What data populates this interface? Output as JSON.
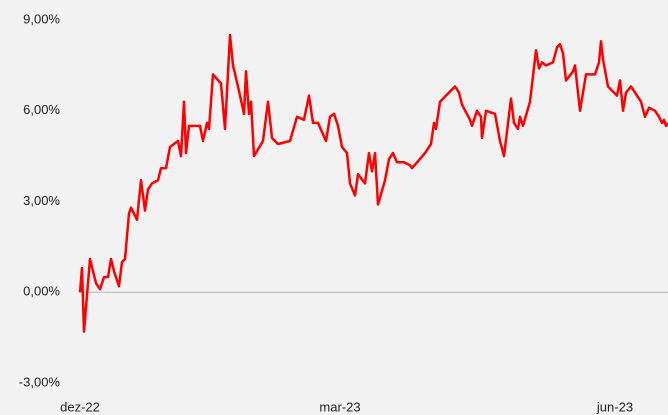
{
  "chart_data": {
    "type": "line",
    "x": [
      0,
      2,
      4,
      10,
      16,
      20,
      24,
      28,
      31,
      34,
      39,
      42,
      45,
      49,
      51,
      57,
      61,
      65,
      68,
      72,
      78,
      81,
      86,
      90,
      98,
      101,
      104,
      106,
      109,
      113,
      120,
      123,
      127,
      129,
      133,
      141,
      145,
      150,
      153,
      158,
      164,
      166,
      169,
      171,
      174,
      183,
      188,
      192,
      198,
      210,
      217,
      224,
      229,
      233,
      238,
      246,
      250,
      254,
      258,
      262,
      267,
      270,
      275,
      278,
      285,
      289,
      292,
      295,
      298,
      305,
      309,
      313,
      317,
      324,
      330,
      332,
      345,
      351,
      354,
      356,
      360,
      369,
      375,
      379,
      382,
      390,
      392,
      397,
      401,
      402,
      406,
      415,
      420,
      424,
      431,
      434,
      438,
      440,
      443,
      450,
      456,
      459,
      462,
      466,
      473,
      477,
      480,
      483,
      486,
      493,
      495,
      500,
      506,
      515,
      519,
      521,
      523,
      528,
      534,
      537,
      540,
      543,
      546,
      551,
      557,
      561,
      565,
      569,
      575,
      579,
      582,
      584,
      586,
      588
    ],
    "values": [
      0,
      0.8,
      -1.3,
      1.1,
      0.3,
      0.1,
      0.5,
      0.5,
      1.1,
      0.7,
      0.2,
      1.0,
      1.1,
      2.6,
      2.8,
      2.4,
      3.7,
      2.7,
      3.4,
      3.6,
      3.7,
      4.1,
      4.1,
      4.8,
      5.0,
      4.5,
      6.3,
      4.6,
      5.5,
      5.5,
      5.5,
      5.0,
      5.6,
      5.4,
      7.2,
      6.9,
      5.4,
      8.5,
      7.5,
      6.8,
      5.9,
      7.3,
      5.9,
      6.3,
      4.5,
      5.0,
      6.3,
      5.1,
      4.9,
      5.0,
      5.8,
      5.7,
      6.5,
      5.6,
      5.6,
      5.0,
      5.8,
      5.9,
      5.5,
      4.8,
      4.6,
      3.6,
      3.2,
      3.9,
      3.6,
      4.6,
      4.0,
      4.6,
      2.9,
      3.7,
      4.4,
      4.6,
      4.3,
      4.3,
      4.2,
      4.1,
      4.6,
      4.9,
      5.6,
      5.4,
      6.3,
      6.6,
      6.8,
      6.6,
      6.2,
      5.7,
      5.5,
      6.0,
      5.8,
      5.1,
      6.0,
      5.9,
      5.0,
      4.5,
      6.4,
      5.6,
      5.4,
      5.8,
      5.5,
      6.3,
      8.0,
      7.4,
      7.6,
      7.5,
      7.6,
      8.1,
      8.2,
      7.9,
      7.0,
      7.3,
      7.5,
      6.0,
      7.2,
      7.2,
      7.6,
      8.3,
      7.7,
      6.8,
      6.6,
      6.5,
      7.0,
      6.0,
      6.6,
      6.8,
      6.5,
      6.3,
      5.8,
      6.1,
      6.0,
      5.8,
      5.6,
      5.7,
      5.5,
      5.6
    ],
    "color": "#ff0000",
    "xlim": [
      0,
      588
    ],
    "xticks": [
      {
        "value": 0,
        "label": "dez-22"
      },
      {
        "value": 260,
        "label": "mar-23"
      },
      {
        "value": 535,
        "label": "jun-23"
      }
    ],
    "ylim": [
      -3,
      9
    ],
    "yticks": [
      {
        "value": -3,
        "label": "-3,00%"
      },
      {
        "value": 0,
        "label": "0,00%"
      },
      {
        "value": 3,
        "label": "3,00%"
      },
      {
        "value": 6,
        "label": "6,00%"
      },
      {
        "value": 9,
        "label": "9,00%"
      }
    ]
  }
}
